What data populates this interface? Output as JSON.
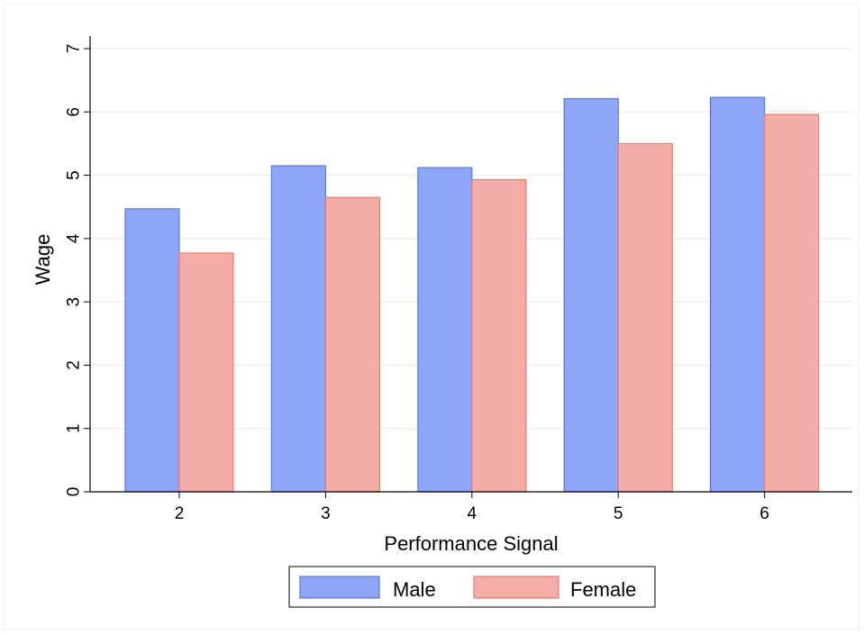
{
  "chart_data": {
    "type": "bar",
    "title": "",
    "xlabel": "Performance Signal",
    "ylabel": "Wage",
    "categories": [
      "2",
      "3",
      "4",
      "5",
      "6"
    ],
    "series": [
      {
        "name": "Male",
        "values": [
          4.47,
          5.15,
          5.12,
          6.21,
          6.23
        ],
        "color": "#8fa5f7",
        "stroke": "#5a78e0"
      },
      {
        "name": "Female",
        "values": [
          3.77,
          4.65,
          4.93,
          5.5,
          5.96
        ],
        "color": "#f4aca6",
        "stroke": "#e77b72"
      }
    ],
    "yticks": [
      "0",
      "1",
      "2",
      "3",
      "4",
      "5",
      "6",
      "7"
    ],
    "ylim": [
      0,
      7
    ],
    "grid": true,
    "legend": "bottom-center"
  }
}
